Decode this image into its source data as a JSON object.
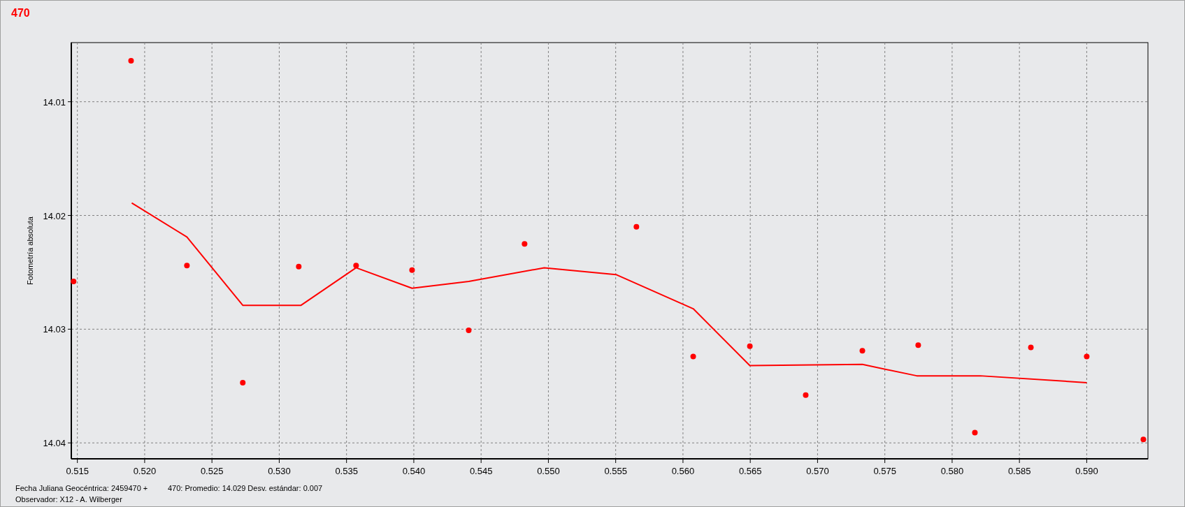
{
  "chart_data": {
    "type": "scatter",
    "title": "470",
    "ylabel": "Fotometría absoluta",
    "xlabel": "Fecha Juliana Geocéntrica: 2459470 +",
    "annotations": [
      "470: Promedio: 14.029   Desv. estándar: 0.007",
      "Observador: X12 - A. Wilberger"
    ],
    "xlim": [
      0.51455,
      0.59455
    ],
    "ylim": [
      14.0414,
      14.0048
    ],
    "xticks": [
      {
        "value": 0.515,
        "label": "0.515"
      },
      {
        "value": 0.52,
        "label": "0.520"
      },
      {
        "value": 0.525,
        "label": "0.525"
      },
      {
        "value": 0.53,
        "label": "0.530"
      },
      {
        "value": 0.535,
        "label": "0.535"
      },
      {
        "value": 0.54,
        "label": "0.540"
      },
      {
        "value": 0.545,
        "label": "0.545"
      },
      {
        "value": 0.55,
        "label": "0.550"
      },
      {
        "value": 0.555,
        "label": "0.555"
      },
      {
        "value": 0.56,
        "label": "0.560"
      },
      {
        "value": 0.565,
        "label": "0.565"
      },
      {
        "value": 0.57,
        "label": "0.570"
      },
      {
        "value": 0.575,
        "label": "0.575"
      },
      {
        "value": 0.58,
        "label": "0.580"
      },
      {
        "value": 0.585,
        "label": "0.585"
      },
      {
        "value": 0.59,
        "label": "0.590"
      }
    ],
    "yticks": [
      14.01,
      14.02,
      14.03,
      14.04
    ],
    "grid": true,
    "series": [
      {
        "color": "#ff0000",
        "marker": "circle",
        "x": [
          0.51472,
          0.51899,
          0.52314,
          0.52729,
          0.53145,
          0.53571,
          0.53987,
          0.54408,
          0.54823,
          0.55654,
          0.56076,
          0.56497,
          0.56912,
          0.57333,
          0.57748,
          0.58169,
          0.58585,
          0.59,
          0.59421
        ],
        "values": [
          14.0258,
          14.0064,
          14.0244,
          14.0347,
          14.0245,
          14.0244,
          14.0248,
          14.0301,
          14.0225,
          14.021,
          14.0324,
          14.0315,
          14.0358,
          14.0319,
          14.0314,
          14.0391,
          14.0316,
          14.0324,
          14.0397
        ]
      },
      {
        "type": "line",
        "color": "#ff0000",
        "marker": "none",
        "line_style": "solid",
        "x": [
          0.51904,
          0.52314,
          0.52729,
          0.53162,
          0.53571,
          0.53987,
          0.54408,
          0.54969,
          0.55502,
          0.56076,
          0.56497,
          0.57333,
          0.57737,
          0.58208,
          0.59
        ],
        "values": [
          14.0189,
          14.0219,
          14.0279,
          14.0279,
          14.0246,
          14.0264,
          14.0258,
          14.0246,
          14.0252,
          14.0282,
          14.0332,
          14.0331,
          14.0341,
          14.0341,
          14.0347
        ]
      }
    ]
  }
}
